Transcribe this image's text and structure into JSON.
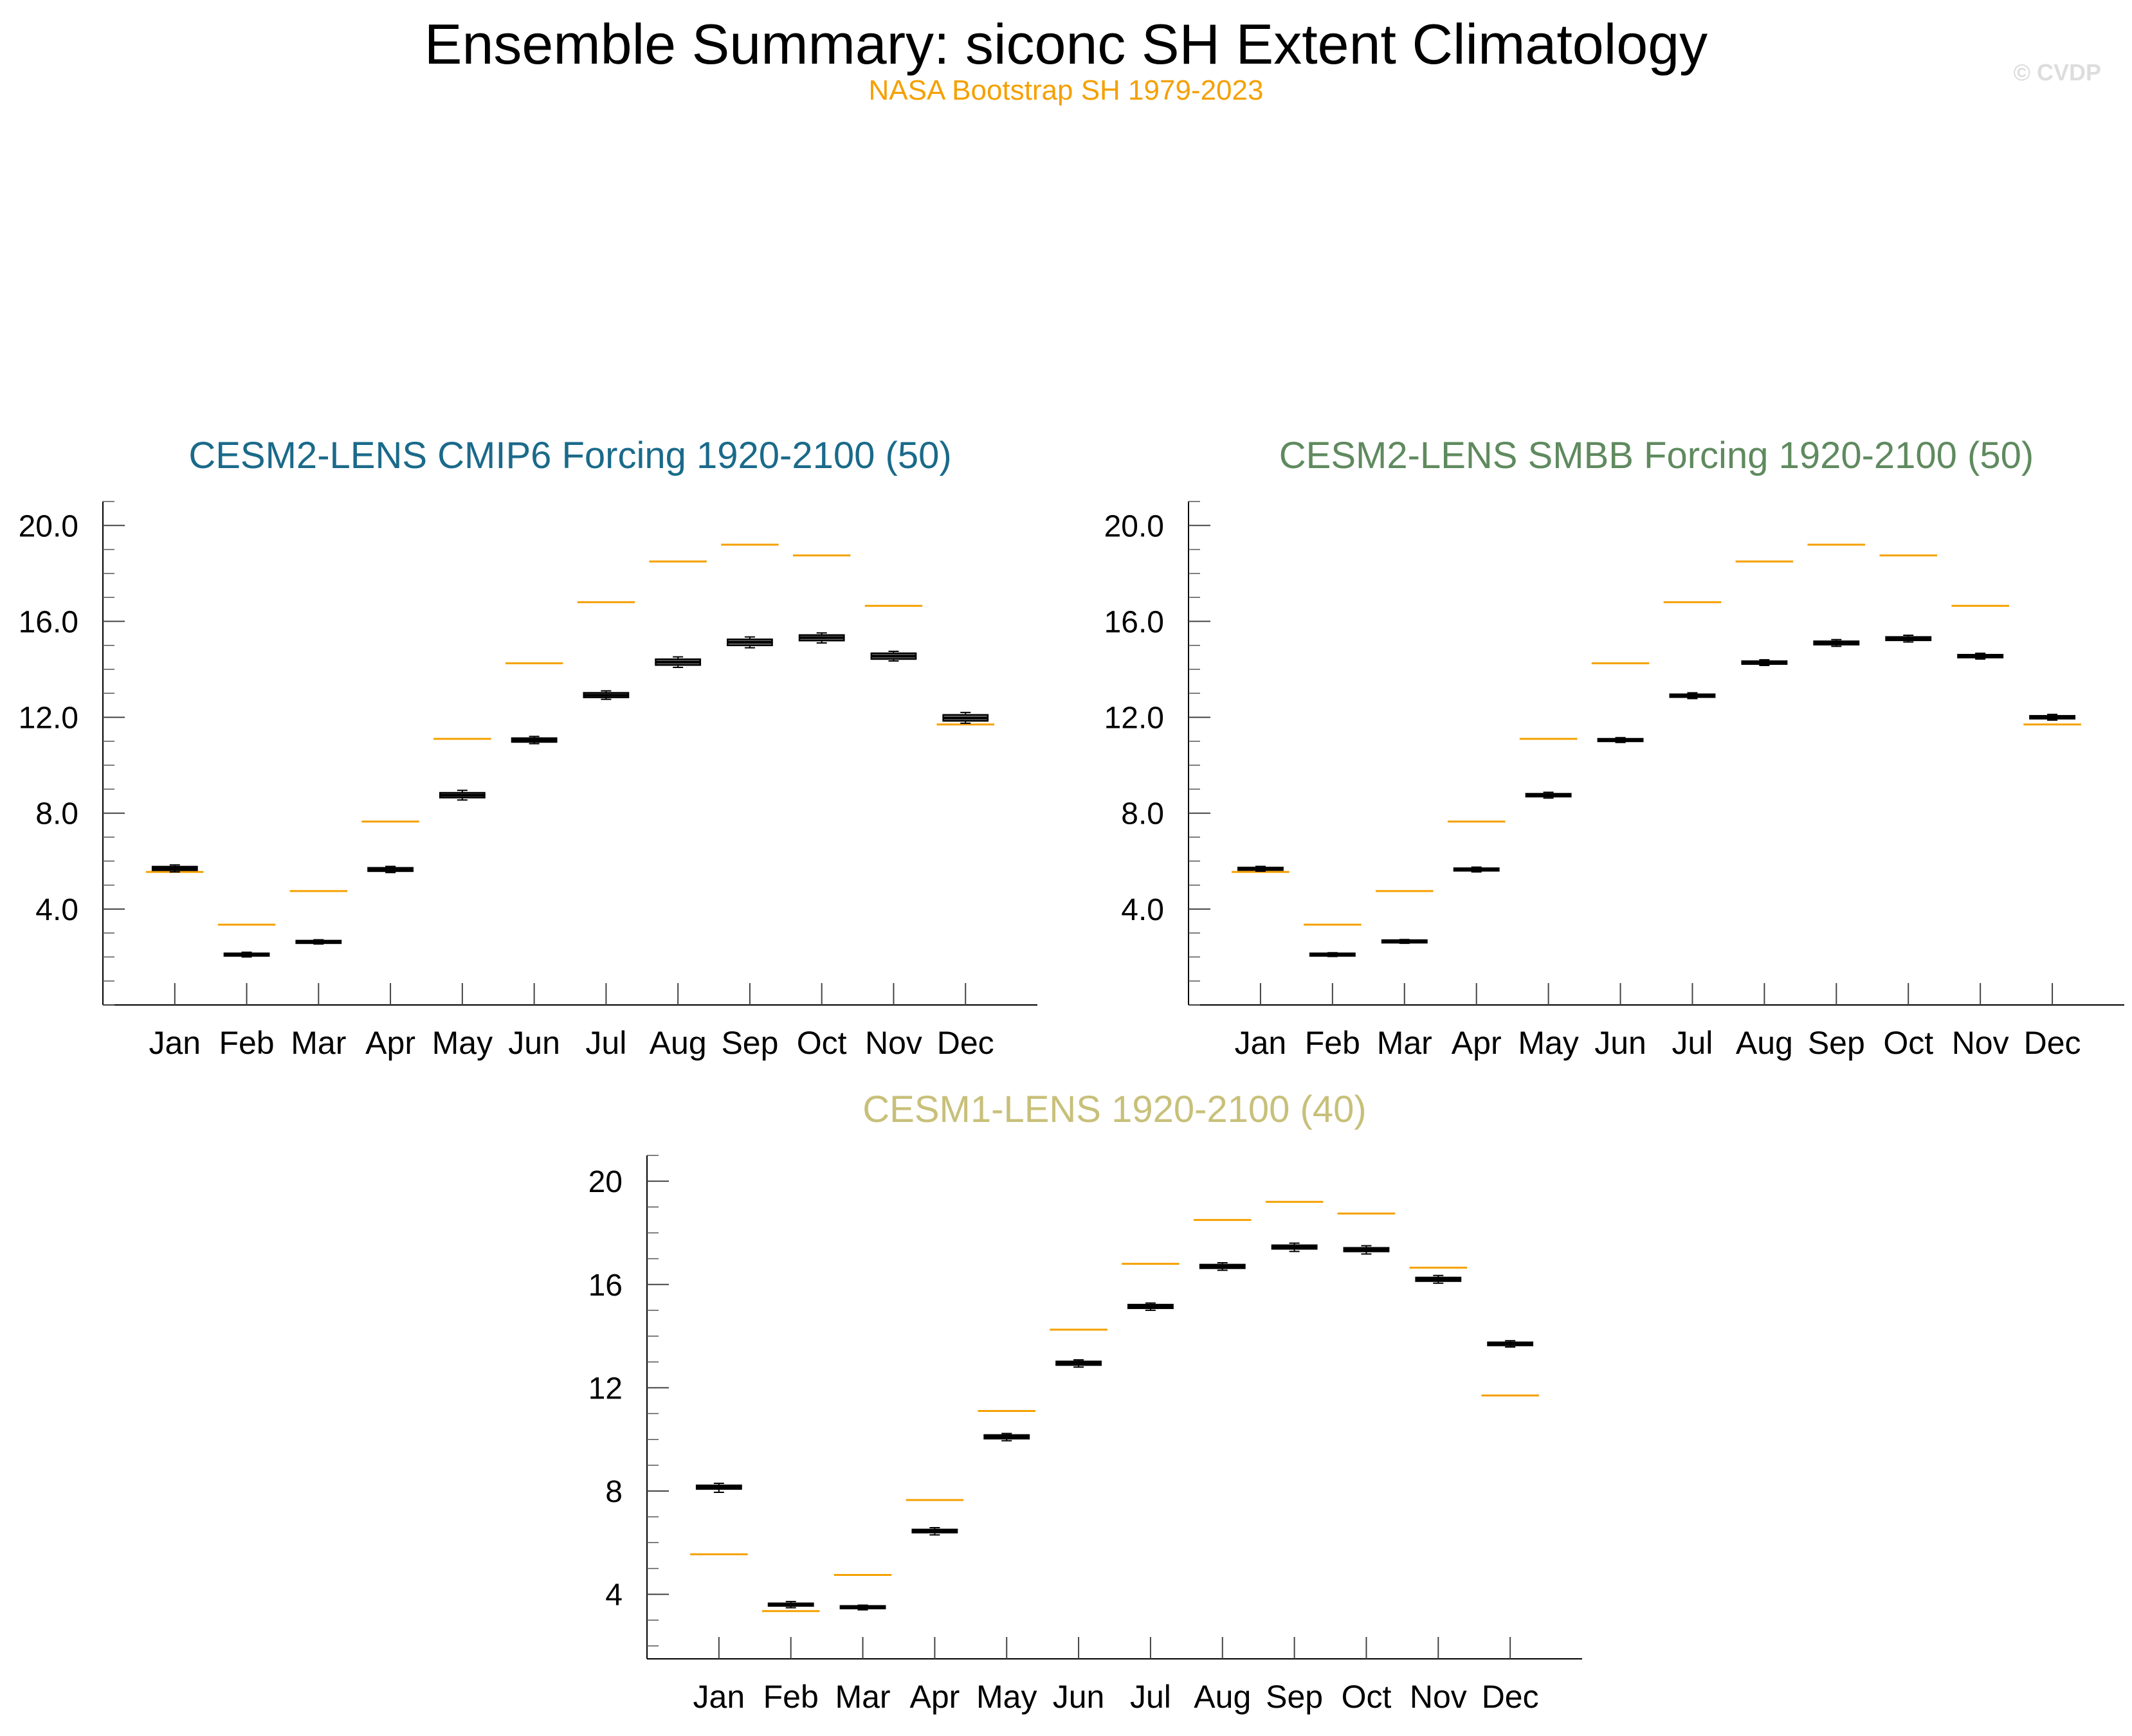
{
  "header": {
    "title": "Ensemble Summary: siconc SH Extent Climatology",
    "subtitle": "NASA Bootstrap SH 1979-2023",
    "watermark": "© CVDP"
  },
  "colors": {
    "observations": "#f5a000",
    "box_fill": "#777777",
    "axis": "#000000",
    "panel_titles": [
      "#1a6a8a",
      "#5f8a5f",
      "#c8c07a"
    ]
  },
  "chart_data": [
    {
      "type": "box",
      "title": "CESM2-LENS CMIP6 Forcing 1920-2100 (50)",
      "categories": [
        "Jan",
        "Feb",
        "Mar",
        "Apr",
        "May",
        "Jun",
        "Jul",
        "Aug",
        "Sep",
        "Oct",
        "Nov",
        "Dec"
      ],
      "ylim": [
        0.0,
        21.0
      ],
      "yticks": [
        4.0,
        8.0,
        12.0,
        16.0,
        20.0
      ],
      "ytick_labels": [
        "4.0",
        "8.0",
        "12.0",
        "16.0",
        "20.0"
      ],
      "ensemble_median": [
        5.7,
        2.1,
        2.63,
        5.65,
        8.75,
        11.05,
        12.92,
        14.3,
        15.13,
        15.32,
        14.55,
        11.97
      ],
      "ensemble_q1": [
        5.62,
        2.05,
        2.58,
        5.58,
        8.65,
        10.97,
        12.83,
        14.18,
        15.0,
        15.2,
        14.43,
        11.85
      ],
      "ensemble_q3": [
        5.77,
        2.15,
        2.68,
        5.72,
        8.85,
        11.13,
        13.02,
        14.42,
        15.25,
        15.43,
        14.67,
        12.1
      ],
      "ensemble_min": [
        5.55,
        2.0,
        2.54,
        5.52,
        8.55,
        10.9,
        12.75,
        14.08,
        14.9,
        15.1,
        14.35,
        11.75
      ],
      "ensemble_max": [
        5.84,
        2.2,
        2.72,
        5.78,
        8.95,
        11.2,
        13.1,
        14.52,
        15.35,
        15.52,
        14.75,
        12.2
      ],
      "observations": [
        5.55,
        3.35,
        4.75,
        7.65,
        11.1,
        14.25,
        16.8,
        18.5,
        19.2,
        18.75,
        16.65,
        11.7
      ]
    },
    {
      "type": "box",
      "title": "CESM2-LENS SMBB Forcing 1920-2100 (50)",
      "categories": [
        "Jan",
        "Feb",
        "Mar",
        "Apr",
        "May",
        "Jun",
        "Jul",
        "Aug",
        "Sep",
        "Oct",
        "Nov",
        "Dec"
      ],
      "ylim": [
        0.0,
        21.0
      ],
      "yticks": [
        4.0,
        8.0,
        12.0,
        16.0,
        20.0
      ],
      "ytick_labels": [
        "4.0",
        "8.0",
        "12.0",
        "16.0",
        "20.0"
      ],
      "ensemble_median": [
        5.68,
        2.1,
        2.65,
        5.65,
        8.75,
        11.05,
        12.9,
        14.28,
        15.1,
        15.28,
        14.55,
        12.0
      ],
      "ensemble_q1": [
        5.63,
        2.06,
        2.61,
        5.6,
        8.69,
        11.0,
        12.84,
        14.22,
        15.03,
        15.21,
        14.49,
        11.94
      ],
      "ensemble_q3": [
        5.73,
        2.14,
        2.69,
        5.7,
        8.81,
        11.1,
        12.96,
        14.34,
        15.17,
        15.35,
        14.61,
        12.06
      ],
      "ensemble_min": [
        5.58,
        2.02,
        2.57,
        5.55,
        8.63,
        10.95,
        12.78,
        14.16,
        14.96,
        15.14,
        14.43,
        11.88
      ],
      "ensemble_max": [
        5.78,
        2.18,
        2.73,
        5.75,
        8.87,
        11.15,
        13.02,
        14.4,
        15.24,
        15.42,
        14.67,
        12.12
      ],
      "observations": [
        5.55,
        3.35,
        4.75,
        7.65,
        11.1,
        14.25,
        16.8,
        18.5,
        19.2,
        18.75,
        16.65,
        11.7
      ]
    },
    {
      "type": "box",
      "title": "CESM1-LENS 1920-2100 (40)",
      "categories": [
        "Jan",
        "Feb",
        "Mar",
        "Apr",
        "May",
        "Jun",
        "Jul",
        "Aug",
        "Sep",
        "Oct",
        "Nov",
        "Dec"
      ],
      "ylim": [
        1.5,
        21.0
      ],
      "yticks": [
        4,
        8,
        12,
        16,
        20
      ],
      "ytick_labels": [
        "4",
        "8",
        "12",
        "16",
        "20"
      ],
      "ensemble_median": [
        8.15,
        3.6,
        3.5,
        6.45,
        10.1,
        12.95,
        15.15,
        16.7,
        17.45,
        17.35,
        16.2,
        13.7
      ],
      "ensemble_q1": [
        8.08,
        3.55,
        3.46,
        6.39,
        10.03,
        12.88,
        15.08,
        16.63,
        17.38,
        17.28,
        16.13,
        13.64
      ],
      "ensemble_q3": [
        8.22,
        3.65,
        3.54,
        6.51,
        10.17,
        13.02,
        15.22,
        16.77,
        17.52,
        17.42,
        16.27,
        13.76
      ],
      "ensemble_min": [
        7.95,
        3.48,
        3.4,
        6.3,
        9.95,
        12.8,
        15.0,
        16.55,
        17.28,
        17.18,
        16.05,
        13.58
      ],
      "ensemble_max": [
        8.3,
        3.72,
        3.58,
        6.58,
        10.23,
        13.08,
        15.28,
        16.84,
        17.6,
        17.5,
        16.35,
        13.82
      ],
      "observations": [
        5.55,
        3.35,
        4.75,
        7.65,
        11.1,
        14.25,
        16.8,
        18.5,
        19.2,
        18.75,
        16.65,
        11.7
      ]
    }
  ]
}
